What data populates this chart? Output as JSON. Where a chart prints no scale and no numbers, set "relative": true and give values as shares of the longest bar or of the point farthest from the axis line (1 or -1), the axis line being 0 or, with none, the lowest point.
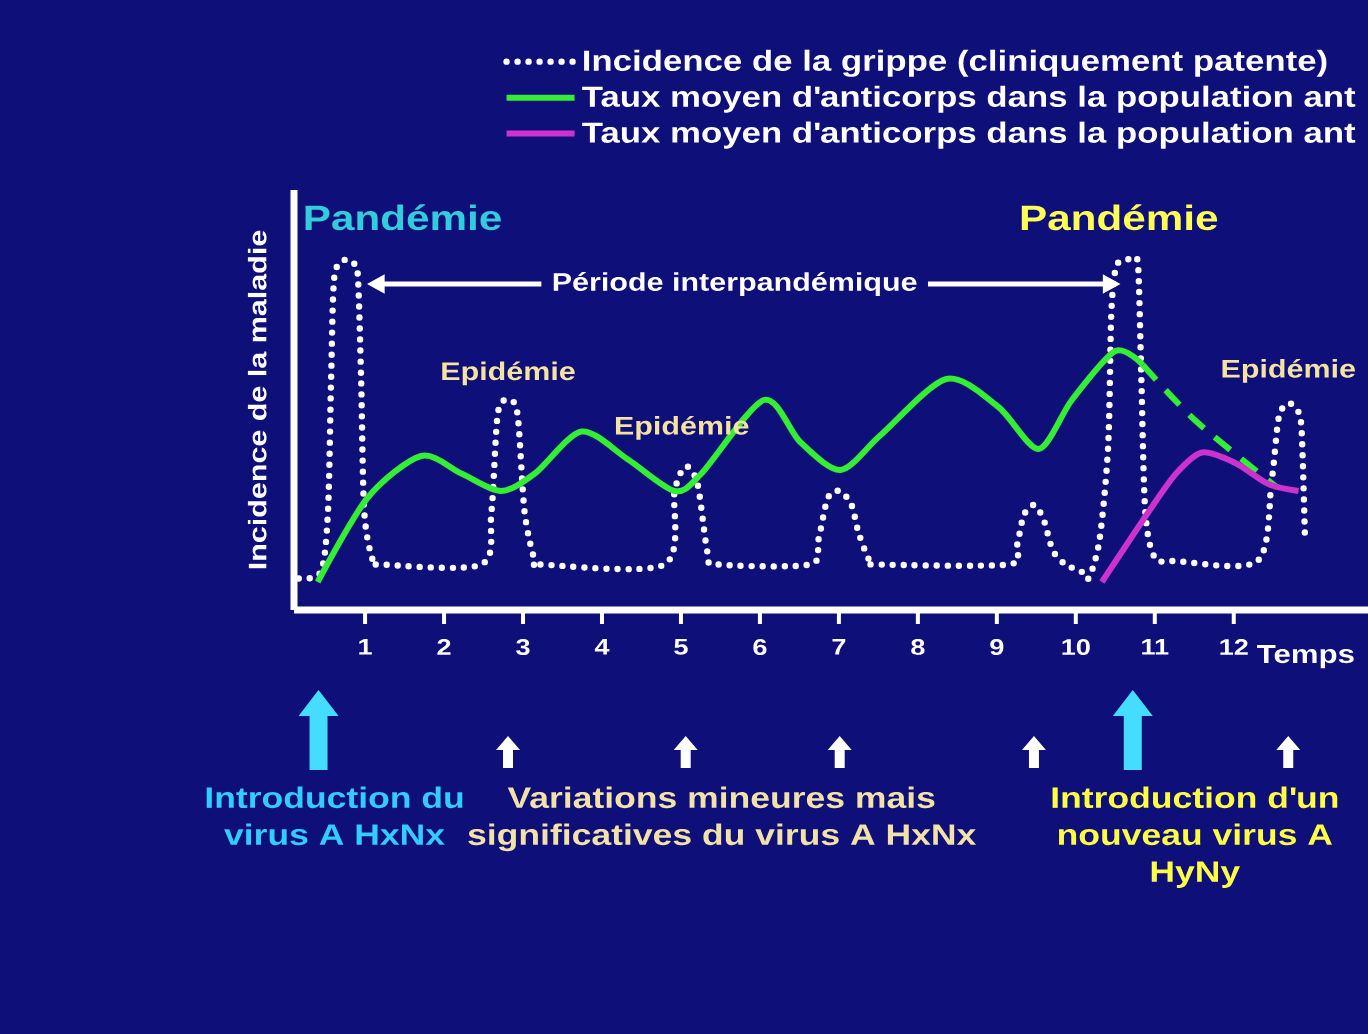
{
  "chart_data": {
    "type": "line",
    "relative": true,
    "xlabel": "Temps",
    "ylabel": "Incidence de la maladie",
    "xlim": [
      0.1,
      13.7
    ],
    "xticks": [
      1,
      2,
      3,
      4,
      5,
      6,
      7,
      8,
      9,
      10,
      11,
      12
    ],
    "legend": "top right",
    "series": [
      {
        "name": "Incidence de la grippe (cliniquement patente)",
        "color": "#ffffff",
        "line_style": "dotted",
        "x": [
          0.16,
          0.44,
          0.53,
          0.57,
          0.61,
          0.74,
          0.86,
          0.91,
          0.95,
          0.99,
          1.1,
          1.2,
          2.47,
          2.6,
          2.68,
          2.81,
          2.93,
          3.02,
          3.15,
          3.23,
          4.79,
          4.92,
          5.06,
          5.21,
          5.34,
          5.47,
          6.63,
          6.74,
          6.86,
          7.01,
          7.16,
          7.25,
          7.39,
          7.49,
          9.14,
          9.25,
          9.34,
          9.47,
          9.59,
          9.71,
          9.87,
          10.07,
          10.16,
          10.3,
          10.41,
          10.45,
          10.51,
          10.62,
          10.73,
          10.79,
          10.83,
          10.88,
          11.0,
          11.26,
          12.3,
          12.48,
          12.57,
          12.69,
          12.81,
          12.86,
          12.9
        ],
        "values": [
          0.09,
          0.11,
          0.28,
          0.66,
          0.95,
          1.0,
          0.99,
          0.95,
          0.66,
          0.28,
          0.14,
          0.13,
          0.13,
          0.28,
          0.56,
          0.6,
          0.56,
          0.28,
          0.14,
          0.13,
          0.13,
          0.34,
          0.41,
          0.36,
          0.16,
          0.13,
          0.13,
          0.2,
          0.32,
          0.34,
          0.3,
          0.22,
          0.14,
          0.13,
          0.13,
          0.18,
          0.27,
          0.3,
          0.26,
          0.17,
          0.13,
          0.11,
          0.09,
          0.2,
          0.47,
          0.85,
          0.98,
          1.0,
          1.0,
          0.98,
          0.66,
          0.28,
          0.15,
          0.14,
          0.14,
          0.37,
          0.55,
          0.59,
          0.57,
          0.51,
          0.22
        ]
      },
      {
        "name": "Taux moyen d'anticorps dans la population ant",
        "color": "#33ee33",
        "x": [
          0.4,
          1.03,
          1.71,
          2.22,
          2.72,
          3.15,
          3.74,
          4.33,
          4.92,
          5.26,
          6.05,
          6.51,
          7.02,
          7.53,
          8.36,
          9.02,
          9.53,
          9.95,
          10.5,
          10.85
        ],
        "values": [
          0.08,
          0.32,
          0.44,
          0.39,
          0.34,
          0.39,
          0.51,
          0.43,
          0.34,
          0.39,
          0.6,
          0.48,
          0.4,
          0.5,
          0.66,
          0.58,
          0.46,
          0.6,
          0.74,
          0.7
        ]
      },
      {
        "color": "#33ee33",
        "line_style": "dashed",
        "x": [
          10.85,
          11.52,
          12.55
        ],
        "values": [
          0.7,
          0.54,
          0.35
        ]
      },
      {
        "name": "Taux moyen d'anticorps dans la population ant",
        "color": "#cc33cc",
        "x": [
          10.33,
          10.92,
          11.27,
          11.6,
          12.02,
          12.44,
          12.82
        ],
        "values": [
          0.08,
          0.28,
          0.39,
          0.45,
          0.42,
          0.36,
          0.34
        ]
      }
    ],
    "annotations": [
      {
        "text": "Pandémie",
        "x": 0.74,
        "y": 1.0
      },
      "Période interpandémique",
      {
        "text": "Pandémie",
        "x": 10.62,
        "y": 1.0
      },
      {
        "text": "Epidémie",
        "x": 2.81,
        "y": 0.6
      },
      {
        "text": "Epidémie",
        "x": 5.06,
        "y": 0.41
      },
      {
        "text": "Epidémie",
        "x": 12.69,
        "y": 0.59
      },
      "Introduction du virus A HxNx",
      "Variations mineures mais significatives du virus A HxNx",
      "Introduction d'un nouveau virus A HyNy"
    ]
  }
}
